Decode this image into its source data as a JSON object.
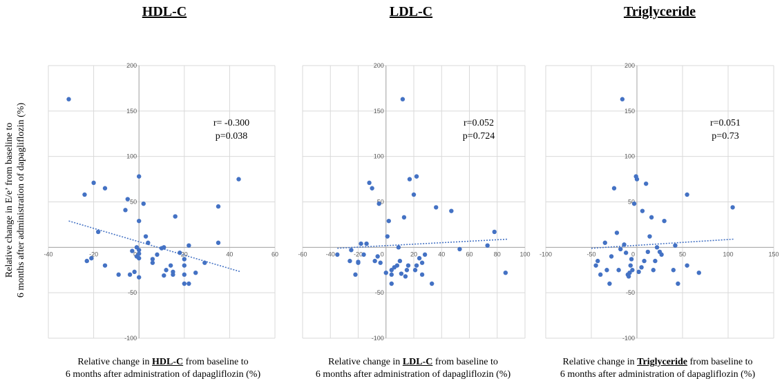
{
  "y_axis_label": "Relative change in E/e’ from baseline to 6 months after administration of dapagliflozin (%)",
  "y_axis_label_lines": [
    "Relative change in E/e’ from baseline to",
    "6 months after administration of dapagliflozin (%)"
  ],
  "colors": {
    "point": "#4472C4",
    "trend": "#4472C4",
    "grid": "#D9D9D9",
    "axis": "#A6A6A6"
  },
  "panels": [
    {
      "title": "HDL-C",
      "stat_r": "r= -0.300",
      "stat_p": "p=0.038",
      "xlabel_pre": "Relative change in ",
      "xlabel_var": "HDL-C",
      "xlabel_post": " from baseline to",
      "xlabel_line2": "6 months after administration of dapagliflozin (%)"
    },
    {
      "title": "LDL-C",
      "stat_r": "r=0.052",
      "stat_p": "p=0.724",
      "xlabel_pre": "Relative change in ",
      "xlabel_var": "LDL-C",
      "xlabel_post": " from baseline to",
      "xlabel_line2": "6 months after administration of dapagliflozin (%)"
    },
    {
      "title": "Triglyceride",
      "stat_r": "r=0.051",
      "stat_p": "p=0.73",
      "xlabel_pre": "Relative change in ",
      "xlabel_var": "Triglyceride",
      "xlabel_post": " from baseline to",
      "xlabel_line2": "6 months after administration of dapagliflozin (%)"
    }
  ],
  "chart_data": [
    {
      "type": "scatter",
      "title": "HDL-C",
      "xlim": [
        -40,
        60
      ],
      "ylim": [
        -100,
        200
      ],
      "xticks": [
        -40,
        -20,
        0,
        20,
        40,
        60
      ],
      "yticks": [
        -100,
        -50,
        0,
        50,
        100,
        150,
        200
      ],
      "grid": true,
      "trendline": {
        "x": [
          -31,
          45
        ],
        "y": [
          29,
          -27
        ]
      },
      "points": [
        [
          -31,
          163
        ],
        [
          -24,
          58
        ],
        [
          -20,
          71
        ],
        [
          -15,
          65
        ],
        [
          -18,
          17
        ],
        [
          -23,
          -15
        ],
        [
          -21,
          -12
        ],
        [
          -15,
          -20
        ],
        [
          -9,
          -30
        ],
        [
          -6,
          41
        ],
        [
          -5,
          53
        ],
        [
          -4,
          -30
        ],
        [
          -3,
          -4
        ],
        [
          -2,
          -27
        ],
        [
          -1,
          -10
        ],
        [
          0,
          78
        ],
        [
          0,
          29
        ],
        [
          -1,
          0
        ],
        [
          0,
          -3
        ],
        [
          0,
          -7
        ],
        [
          0,
          -12
        ],
        [
          0,
          -33
        ],
        [
          2,
          48
        ],
        [
          3,
          12
        ],
        [
          4,
          5
        ],
        [
          6,
          -13
        ],
        [
          6,
          -17
        ],
        [
          8,
          -8
        ],
        [
          10,
          -1
        ],
        [
          11,
          0
        ],
        [
          11,
          -31
        ],
        [
          12,
          -25
        ],
        [
          14,
          -20
        ],
        [
          15,
          -27
        ],
        [
          15,
          -30
        ],
        [
          16,
          34
        ],
        [
          18,
          -6
        ],
        [
          20,
          -13
        ],
        [
          20,
          -20
        ],
        [
          20,
          -30
        ],
        [
          20,
          -40
        ],
        [
          22,
          2
        ],
        [
          22,
          -40
        ],
        [
          25,
          -28
        ],
        [
          29,
          -17
        ],
        [
          35,
          45
        ],
        [
          35,
          5
        ],
        [
          44,
          75
        ]
      ]
    },
    {
      "type": "scatter",
      "title": "LDL-C",
      "xlim": [
        -60,
        100
      ],
      "ylim": [
        -100,
        200
      ],
      "xticks": [
        -60,
        -40,
        -20,
        0,
        20,
        40,
        60,
        80,
        100
      ],
      "yticks": [
        -100,
        -50,
        0,
        50,
        100,
        150,
        200
      ],
      "grid": true,
      "trendline": {
        "x": [
          -35,
          88
        ],
        "y": [
          -1,
          9
        ]
      },
      "points": [
        [
          -35,
          -8
        ],
        [
          -25,
          -3
        ],
        [
          -26,
          -15
        ],
        [
          -22,
          -30
        ],
        [
          -20,
          -17
        ],
        [
          -20,
          -16
        ],
        [
          -18,
          4
        ],
        [
          -14,
          4
        ],
        [
          -16,
          -8
        ],
        [
          -12,
          71
        ],
        [
          -10,
          65
        ],
        [
          -8,
          -15
        ],
        [
          -6,
          -10
        ],
        [
          -5,
          48
        ],
        [
          -4,
          -17
        ],
        [
          0,
          -28
        ],
        [
          1,
          12
        ],
        [
          2,
          29
        ],
        [
          4,
          -30
        ],
        [
          4,
          -40
        ],
        [
          4,
          -25
        ],
        [
          6,
          -22
        ],
        [
          8,
          -20
        ],
        [
          9,
          0
        ],
        [
          10,
          -15
        ],
        [
          11,
          -29
        ],
        [
          12,
          163
        ],
        [
          13,
          33
        ],
        [
          14,
          -32
        ],
        [
          15,
          -25
        ],
        [
          16,
          -20
        ],
        [
          17,
          75
        ],
        [
          20,
          58
        ],
        [
          21,
          -25
        ],
        [
          22,
          -20
        ],
        [
          22,
          78
        ],
        [
          24,
          -12
        ],
        [
          26,
          -30
        ],
        [
          26,
          -17
        ],
        [
          28,
          -8
        ],
        [
          33,
          -40
        ],
        [
          36,
          44
        ],
        [
          47,
          40
        ],
        [
          53,
          -2
        ],
        [
          73,
          2
        ],
        [
          78,
          17
        ],
        [
          86,
          -28
        ]
      ]
    },
    {
      "type": "scatter",
      "title": "Triglyceride",
      "xlim": [
        -100,
        150
      ],
      "ylim": [
        -100,
        200
      ],
      "xticks": [
        -100,
        -50,
        0,
        50,
        100,
        150
      ],
      "yticks": [
        -100,
        -50,
        0,
        50,
        100,
        150,
        200
      ],
      "grid": true,
      "trendline": {
        "x": [
          -50,
          106
        ],
        "y": [
          -1,
          9
        ]
      },
      "points": [
        [
          -45,
          -20
        ],
        [
          -43,
          -15
        ],
        [
          -40,
          -30
        ],
        [
          -35,
          5
        ],
        [
          -33,
          -25
        ],
        [
          -30,
          -40
        ],
        [
          -28,
          -10
        ],
        [
          -25,
          65
        ],
        [
          -22,
          16
        ],
        [
          -20,
          -25
        ],
        [
          -18,
          -2
        ],
        [
          -16,
          163
        ],
        [
          -14,
          3
        ],
        [
          -12,
          -6
        ],
        [
          -10,
          -30
        ],
        [
          -9,
          -32
        ],
        [
          -8,
          -28
        ],
        [
          -7,
          -20
        ],
        [
          -6,
          -13
        ],
        [
          -5,
          -25
        ],
        [
          -3,
          48
        ],
        [
          -1,
          78
        ],
        [
          0,
          75
        ],
        [
          2,
          -27
        ],
        [
          5,
          -22
        ],
        [
          6,
          40
        ],
        [
          8,
          -15
        ],
        [
          10,
          70
        ],
        [
          12,
          -5
        ],
        [
          14,
          12
        ],
        [
          16,
          33
        ],
        [
          18,
          -25
        ],
        [
          20,
          -15
        ],
        [
          22,
          0
        ],
        [
          25,
          -5
        ],
        [
          27,
          -8
        ],
        [
          30,
          29
        ],
        [
          40,
          -25
        ],
        [
          42,
          2
        ],
        [
          45,
          -40
        ],
        [
          55,
          58
        ],
        [
          55,
          -20
        ],
        [
          68,
          -28
        ],
        [
          105,
          44
        ]
      ]
    }
  ]
}
